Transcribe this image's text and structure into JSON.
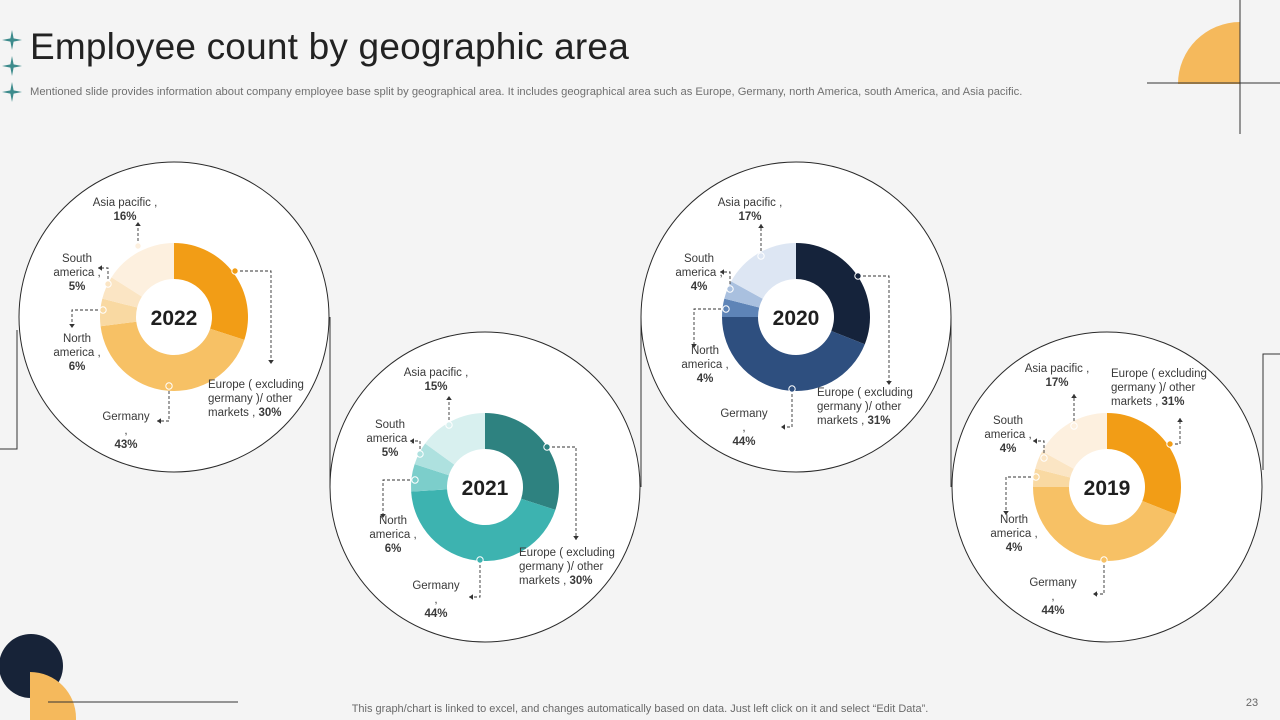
{
  "slide": {
    "title": "Employee count by geographic area",
    "subtitle": "Mentioned slide provides information about company employee base split by geographical area. It includes geographical area such as Europe, Germany, north America, south America, and Asia pacific.",
    "footer_note": "This graph/chart is linked to excel,  and changes automatically based on data. Just left click on it and select “Edit Data”.",
    "page_number": "23"
  },
  "colors": {
    "decor_navy": "#172338",
    "decor_amber": "#f5b95c",
    "decor_teal": "#3d8b8c"
  },
  "chart_data": [
    {
      "type": "pie",
      "year": "2022",
      "series": [
        {
          "name": "Europe ( excluding germany )/ other markets",
          "value": 30,
          "color": "#f29d16"
        },
        {
          "name": "Germany",
          "value": 43,
          "color": "#f7c165"
        },
        {
          "name": "North america",
          "value": 6,
          "color": "#f9d9a2"
        },
        {
          "name": "South america",
          "value": 5,
          "color": "#fbe5c4"
        },
        {
          "name": "Asia pacific",
          "value": 16,
          "color": "#fdf0df"
        }
      ],
      "labels": [
        {
          "lines": [
            "Asia pacific ,"
          ],
          "value": "16%"
        },
        {
          "lines": [
            "South",
            "america ,"
          ],
          "value": "5%"
        },
        {
          "lines": [
            "North",
            "america ,"
          ],
          "value": "6%"
        },
        {
          "lines": [
            "Germany",
            ","
          ],
          "value": "43%"
        },
        {
          "lines": [
            "Europe ( excluding",
            "germany )/ other",
            "markets ,"
          ],
          "value": "30%"
        }
      ]
    },
    {
      "type": "pie",
      "year": "2021",
      "series": [
        {
          "name": "Europe ( excluding germany )/ other markets",
          "value": 30,
          "color": "#2e8280"
        },
        {
          "name": "Germany",
          "value": 44,
          "color": "#3db3b0"
        },
        {
          "name": "North america",
          "value": 6,
          "color": "#7ccecb"
        },
        {
          "name": "South america",
          "value": 5,
          "color": "#aee1df"
        },
        {
          "name": "Asia pacific",
          "value": 15,
          "color": "#d8f0ef"
        }
      ],
      "labels": [
        {
          "lines": [
            "Asia pacific ,"
          ],
          "value": "15%"
        },
        {
          "lines": [
            "South",
            "america ,"
          ],
          "value": "5%"
        },
        {
          "lines": [
            "North",
            "america ,"
          ],
          "value": "6%"
        },
        {
          "lines": [
            "Germany",
            ","
          ],
          "value": "44%"
        },
        {
          "lines": [
            "Europe ( excluding",
            "germany )/ other",
            "markets ,"
          ],
          "value": "30%"
        }
      ]
    },
    {
      "type": "pie",
      "year": "2020",
      "series": [
        {
          "name": "Europe ( excluding germany )/ other markets",
          "value": 31,
          "color": "#15233b"
        },
        {
          "name": "Germany",
          "value": 44,
          "color": "#2e4f7f"
        },
        {
          "name": "North america",
          "value": 4,
          "color": "#5e84b7"
        },
        {
          "name": "South america",
          "value": 4,
          "color": "#a9c0df"
        },
        {
          "name": "Asia pacific",
          "value": 17,
          "color": "#dde6f3"
        }
      ],
      "labels": [
        {
          "lines": [
            "Asia pacific ,"
          ],
          "value": "17%"
        },
        {
          "lines": [
            "South",
            "america ,"
          ],
          "value": "4%"
        },
        {
          "lines": [
            "North",
            "america ,"
          ],
          "value": "4%"
        },
        {
          "lines": [
            "Germany",
            ","
          ],
          "value": "44%"
        },
        {
          "lines": [
            "Europe ( excluding",
            "germany )/ other",
            "markets ,"
          ],
          "value": "31%"
        }
      ]
    },
    {
      "type": "pie",
      "year": "2019",
      "series": [
        {
          "name": "Europe ( excluding germany )/ other markets",
          "value": 31,
          "color": "#f29d16"
        },
        {
          "name": "Germany",
          "value": 44,
          "color": "#f7c165"
        },
        {
          "name": "North america",
          "value": 4,
          "color": "#f9d9a2"
        },
        {
          "name": "South america",
          "value": 4,
          "color": "#fbe5c4"
        },
        {
          "name": "Asia pacific",
          "value": 17,
          "color": "#fdf0df"
        }
      ],
      "labels": [
        {
          "lines": [
            "Asia pacific ,"
          ],
          "value": "17%"
        },
        {
          "lines": [
            "South",
            "america ,"
          ],
          "value": "4%"
        },
        {
          "lines": [
            "North",
            "america ,"
          ],
          "value": "4%"
        },
        {
          "lines": [
            "Germany",
            ","
          ],
          "value": "44%"
        },
        {
          "lines": [
            "Europe ( excluding",
            "germany )/ other",
            "markets ,"
          ],
          "value": "31%"
        }
      ]
    }
  ]
}
